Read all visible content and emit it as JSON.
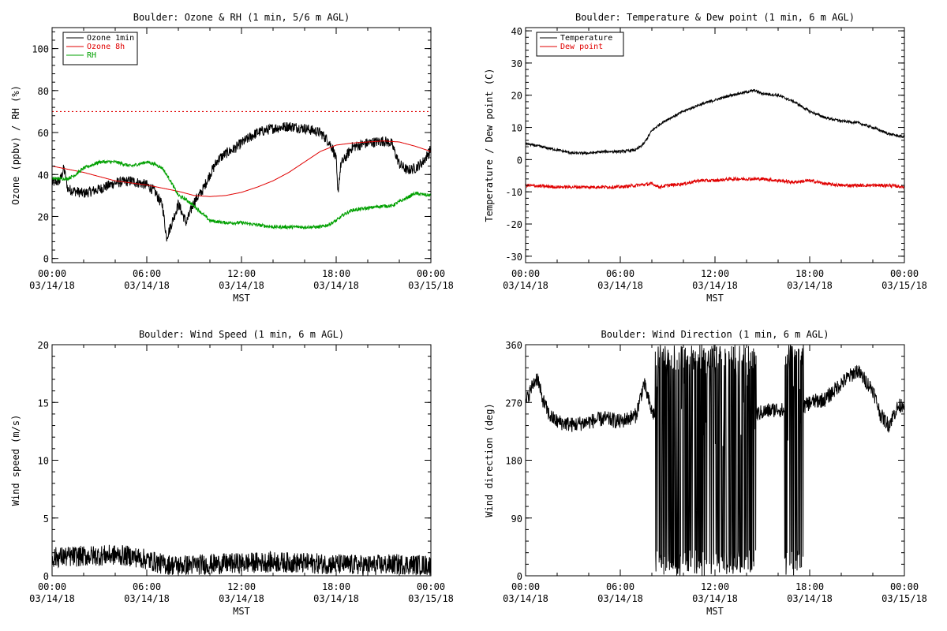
{
  "chart_data": [
    {
      "type": "line",
      "title": "Boulder: Ozone & RH (1 min, 5/6 m AGL)",
      "xlabel": "MST",
      "ylabel": "Ozone (ppbv) / RH (%)",
      "x_ticks": [
        "00:00|03/14/18",
        "06:00|03/14/18",
        "12:00|03/14/18",
        "18:00|03/14/18",
        "00:00|03/15/18"
      ],
      "xlim": [
        0,
        24
      ],
      "ylim": [
        -2,
        110
      ],
      "y_ticks": [
        0,
        20,
        40,
        60,
        80,
        100
      ],
      "legend": "top-left",
      "reference_line": {
        "y": 70,
        "color": "#e00000",
        "style": "dotted"
      },
      "series": [
        {
          "name": "Ozone 1min",
          "color": "#000000",
          "noise": 2.5,
          "x": [
            0,
            0.5,
            0.75,
            1,
            2,
            3,
            4,
            5,
            6,
            6.5,
            7,
            7.25,
            7.5,
            8,
            8.5,
            9,
            9.5,
            10,
            10.5,
            11,
            11.5,
            12,
            13,
            14,
            15,
            16,
            17,
            17.5,
            17.8,
            18,
            18.1,
            18.3,
            18.5,
            19,
            20,
            21,
            21.5,
            22,
            22.5,
            23,
            23.5,
            24
          ],
          "values": [
            36,
            37,
            43,
            33,
            31,
            33,
            36,
            37,
            35,
            32,
            25,
            10,
            15,
            26,
            17,
            27,
            32,
            40,
            47,
            50,
            52,
            55,
            60,
            62,
            63,
            62,
            60,
            56,
            52,
            47,
            31,
            45,
            47,
            53,
            55,
            56,
            55,
            45,
            42,
            43,
            46,
            52
          ]
        },
        {
          "name": "Ozone 8h",
          "color": "#e00000",
          "noise": 0,
          "x": [
            0,
            2,
            4,
            6,
            8,
            9,
            10,
            11,
            12,
            13,
            14,
            15,
            16,
            17,
            18,
            19,
            20,
            21,
            22,
            23,
            24
          ],
          "values": [
            44,
            41,
            37,
            35,
            32,
            30,
            29.5,
            30,
            31.5,
            34,
            37,
            41,
            46,
            51,
            54,
            55,
            55.5,
            56,
            55.5,
            53.5,
            51
          ]
        },
        {
          "name": "RH",
          "color": "#00a000",
          "noise": 0.8,
          "x": [
            0,
            1,
            1.5,
            2,
            3,
            4,
            5,
            6,
            6.5,
            7,
            7.5,
            8,
            8.5,
            9,
            10,
            11,
            12,
            13,
            14,
            15,
            16,
            17,
            17.5,
            18,
            18.5,
            19,
            20,
            21,
            21.5,
            22,
            23,
            24
          ],
          "values": [
            38,
            38,
            40,
            43,
            46,
            46,
            44,
            46,
            45,
            43,
            37,
            30,
            28,
            25,
            18,
            17,
            17,
            16,
            15,
            15,
            15,
            15,
            16,
            18,
            21,
            23,
            24,
            25,
            25,
            27,
            31,
            30
          ]
        }
      ]
    },
    {
      "type": "line",
      "title": "Boulder: Temperature & Dew point (1 min, 6 m AGL)",
      "xlabel": "MST",
      "ylabel": "Temperature / Dew point (C)",
      "x_ticks": [
        "00:00|03/14/18",
        "06:00|03/14/18",
        "12:00|03/14/18",
        "18:00|03/14/18",
        "00:00|03/15/18"
      ],
      "xlim": [
        0,
        24
      ],
      "ylim": [
        -32,
        41
      ],
      "y_ticks": [
        -30,
        -20,
        -10,
        0,
        10,
        20,
        30,
        40
      ],
      "legend": "top-left",
      "series": [
        {
          "name": "Temperature",
          "color": "#000000",
          "noise": 0.4,
          "x": [
            0,
            1,
            2,
            3,
            4,
            5,
            6,
            7,
            7.5,
            8,
            8.5,
            9,
            10,
            11,
            12,
            13,
            14,
            14.5,
            15,
            16,
            17,
            18,
            19,
            20,
            21,
            22,
            23,
            24
          ],
          "values": [
            5,
            4,
            3,
            2,
            2,
            2.5,
            2.5,
            3,
            5,
            9,
            11,
            12.5,
            15,
            17,
            18.5,
            20,
            21,
            21.5,
            20.5,
            20,
            18,
            15,
            13,
            12,
            11.5,
            10,
            8,
            7
          ]
        },
        {
          "name": "Dew point",
          "color": "#e00000",
          "noise": 0.5,
          "x": [
            0,
            2,
            4,
            6,
            8,
            8.5,
            9,
            10,
            11,
            12,
            13,
            14,
            15,
            16,
            17,
            18,
            19,
            20,
            21,
            22,
            23,
            24
          ],
          "values": [
            -8,
            -8.5,
            -8.5,
            -8.5,
            -7.5,
            -8.5,
            -8,
            -7.5,
            -6.5,
            -6.5,
            -6,
            -6,
            -6,
            -6.5,
            -7,
            -6.5,
            -7.5,
            -8,
            -8,
            -8,
            -8,
            -8.5
          ]
        }
      ]
    },
    {
      "type": "line",
      "title": "Boulder: Wind Speed (1 min, 6 m AGL)",
      "xlabel": "MST",
      "ylabel": "Wind speed (m/s)",
      "x_ticks": [
        "00:00|03/14/18",
        "06:00|03/14/18",
        "12:00|03/14/18",
        "18:00|03/14/18",
        "00:00|03/15/18"
      ],
      "xlim": [
        0,
        24
      ],
      "ylim": [
        0,
        20
      ],
      "y_ticks": [
        0,
        5,
        10,
        15,
        20
      ],
      "series": [
        {
          "name": "",
          "color": "#000000",
          "noise": 0.9,
          "x": [
            0,
            2,
            4,
            5,
            6,
            7,
            8,
            10,
            12,
            14,
            16,
            18,
            20,
            22,
            24
          ],
          "values": [
            1.6,
            1.7,
            1.8,
            1.7,
            1.4,
            1.0,
            0.9,
            1.0,
            1.1,
            1.2,
            1.1,
            1.0,
            0.9,
            1.0,
            0.9
          ]
        }
      ]
    },
    {
      "type": "line",
      "title": "Boulder: Wind Direction (1 min, 6 m AGL)",
      "xlabel": "MST",
      "ylabel": "Wind direction (deg)",
      "x_ticks": [
        "00:00|03/14/18",
        "06:00|03/14/18",
        "12:00|03/14/18",
        "18:00|03/14/18",
        "00:00|03/15/18"
      ],
      "xlim": [
        0,
        24
      ],
      "ylim": [
        0,
        360
      ],
      "y_ticks": [
        0,
        90,
        180,
        270,
        360
      ],
      "series": [
        {
          "name": "",
          "color": "#000000",
          "noise": 12,
          "x": [
            0,
            0.5,
            0.75,
            1,
            1.5,
            2,
            3,
            4,
            5,
            6,
            7,
            7.5,
            8,
            8.5,
            9,
            10,
            11,
            12,
            13,
            14,
            15,
            16,
            17,
            17.5,
            18,
            19,
            20,
            21,
            22,
            22.5,
            23,
            23.5,
            24
          ],
          "values": [
            270,
            300,
            310,
            280,
            250,
            240,
            235,
            240,
            245,
            240,
            250,
            300,
            255,
            245,
            240,
            235,
            240,
            250,
            250,
            245,
            255,
            260,
            250,
            260,
            270,
            275,
            300,
            320,
            290,
            250,
            235,
            260,
            270
          ],
          "wrap_bands": [
            [
              8.2,
              14.6
            ],
            [
              16.4,
              17.6
            ]
          ]
        }
      ]
    }
  ]
}
